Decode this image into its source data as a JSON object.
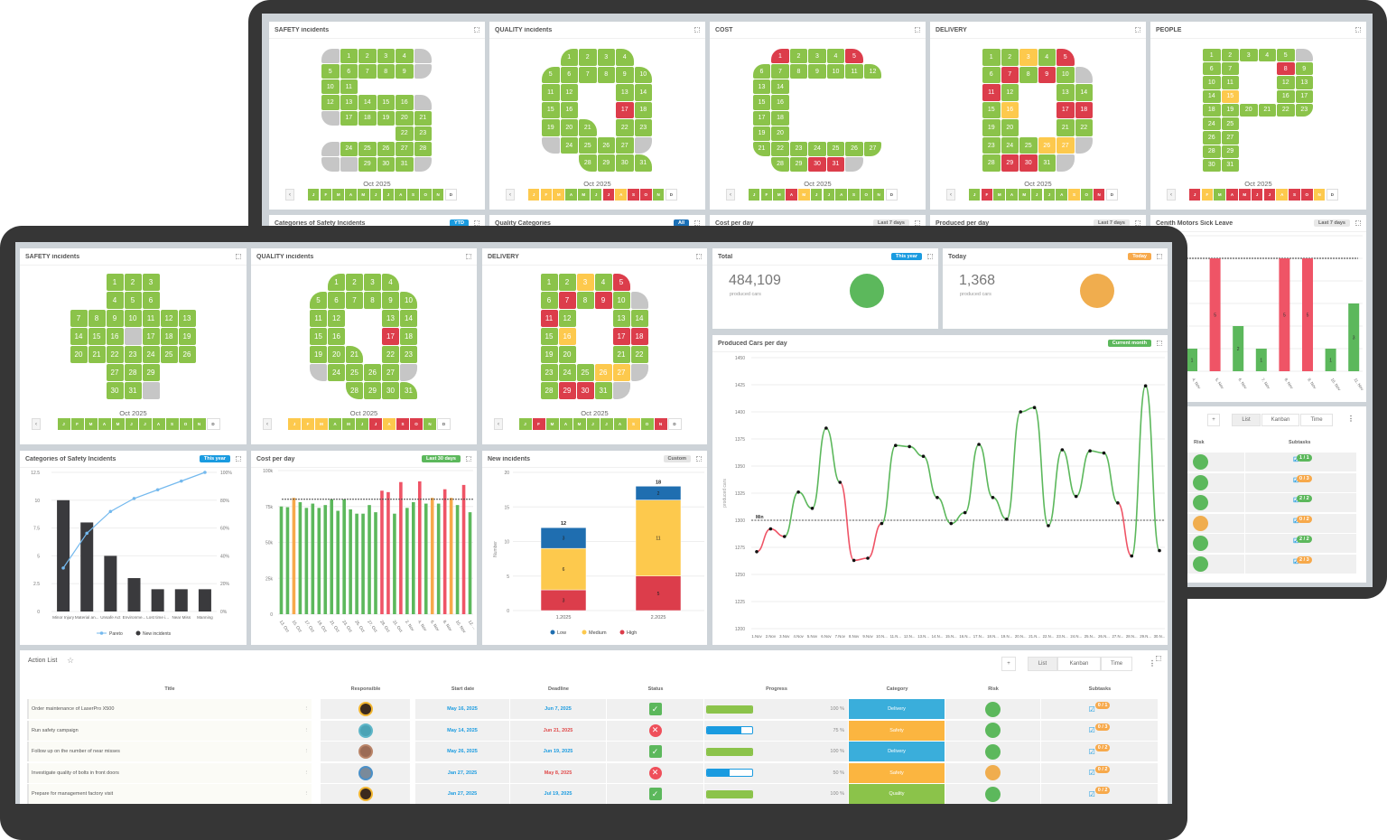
{
  "months": [
    "J",
    "F",
    "M",
    "A",
    "M",
    "J",
    "J",
    "A",
    "S",
    "O",
    "N",
    "D"
  ],
  "colors": {
    "green": "#8bc34a",
    "red": "#dc3d4b",
    "yellow": "#fdc94d",
    "gray": "#c6c6c6",
    "blue": "#1a9be0",
    "orange": "#f0ad4e"
  },
  "back": {
    "calendars": {
      "safety": {
        "title": "SAFETY incidents",
        "month_label": "Oct 2025",
        "days": "ggggggggggggggggggggggggggggggg",
        "months_status": "gggggggggggw"
      },
      "quality": {
        "title": "QUALITY incidents",
        "month_label": "Oct 2025",
        "days": "ggggggggggggggggrgggggggggggggg",
        "months_status": "yyygggryrrgw"
      },
      "cost": {
        "title": "COST",
        "month_label": "Oct 2025",
        "days": "rgggrggggggggggggggggggggggggrrg",
        "months_status": "gggryggggggw"
      },
      "delivery": {
        "title": "DELIVERY",
        "month_label": "Oct 2025",
        "days": "ggygrgrgrgrggggyrrgggggggyygrrg",
        "months_status": "grggggggygrw"
      },
      "people": {
        "title": "PEOPLE",
        "month_label": "Oct 2025",
        "days": "gggggggrggggggyggggggggggggggggg",
        "months_status": "rygrrrryrryw"
      }
    },
    "row2": [
      {
        "title": "Categories of Safety Incidents",
        "badge": "YTD",
        "badge_color": "#1a9be0"
      },
      {
        "title": "Quality Categories",
        "badge": "All",
        "badge_color": "#1a6fb5"
      },
      {
        "title": "Cost per day",
        "badge": "Last 7 days",
        "badge_color": "#e8e8e8"
      },
      {
        "title": "Produced per day",
        "badge": "Last 7 days",
        "badge_color": "#e8e8e8"
      },
      {
        "title": "Cenith Motors Sick Leave",
        "badge": "Last 7 days",
        "badge_color": "#e8e8e8"
      }
    ],
    "action_list": {
      "add": "+",
      "views": [
        "List",
        "Kanban",
        "Time"
      ],
      "headers": {
        "risk": "Risk",
        "subtasks": "Subtasks"
      },
      "rows": [
        {
          "risk": "green",
          "subtasks": "1 / 1",
          "sub_color": "green"
        },
        {
          "risk": "green",
          "subtasks": "0 / 3",
          "sub_color": "orange"
        },
        {
          "risk": "green",
          "subtasks": "2 / 2",
          "sub_color": "green"
        },
        {
          "risk": "orange",
          "subtasks": "0 / 2",
          "sub_color": "orange"
        },
        {
          "risk": "green",
          "subtasks": "2 / 2",
          "sub_color": "green"
        },
        {
          "risk": "green",
          "subtasks": "2 / 3",
          "sub_color": "orange"
        }
      ]
    }
  },
  "front": {
    "calendars": {
      "safety": {
        "title": "SAFETY incidents",
        "month_label": "Oct 2025",
        "days": "ggggggggggggggggggggggggggggggg",
        "months_status": "gggggggggggw"
      },
      "quality": {
        "title": "QUALITY incidents",
        "month_label": "Oct 2025",
        "days": "ggggggggggggggggrgggggggggggggg",
        "months_status": "yyygggryrrgw"
      },
      "delivery": {
        "title": "DELIVERY",
        "month_label": "Oct 2025",
        "days": "ggygrgrgrgrggggyrrgggggggyygrrg",
        "months_status": "grggggggygrw"
      }
    },
    "total": {
      "title": "Total",
      "badge": "This year",
      "value": "484,109",
      "unit": "produced cars",
      "indicator": "green"
    },
    "today": {
      "title": "Today",
      "badge": "Today",
      "value": "1,368",
      "unit": "produced cars",
      "indicator": "orange"
    },
    "panels": {
      "produced": {
        "title": "Produced Cars per day",
        "badge": "Current month"
      },
      "categories": {
        "title": "Categories of Safety Incidents",
        "badge": "This year"
      },
      "cost": {
        "title": "Cost per day",
        "badge": "Last 30 days"
      },
      "incidents": {
        "title": "New incidents",
        "badge": "Custom"
      }
    },
    "action_list": {
      "title": "Action List",
      "add": "+",
      "views": [
        "List",
        "Kanban",
        "Time"
      ],
      "headers": [
        "Title",
        "Responsible",
        "Start date",
        "Deadline",
        "Status",
        "Progress",
        "Category",
        "Risk",
        "Subtasks"
      ],
      "rows": [
        {
          "title": "Order maintenance of LaserPro X500",
          "start": "May 16, 2025",
          "deadline": "Jun 7, 2025",
          "overdue": false,
          "status": "done",
          "progress": 100,
          "progress_text": "100 %",
          "category": "Delivery",
          "risk": "green",
          "subtasks": "0 / 1"
        },
        {
          "title": "Run safety campaign",
          "start": "May 14, 2025",
          "deadline": "Jun 21, 2025",
          "overdue": true,
          "status": "failed",
          "progress": 75,
          "progress_text": "75 %",
          "category": "Safety",
          "risk": "green",
          "subtasks": "0 / 3"
        },
        {
          "title": "Follow up on the number of near misses",
          "start": "May 26, 2025",
          "deadline": "Jun 19, 2025",
          "overdue": false,
          "status": "done",
          "progress": 100,
          "progress_text": "100 %",
          "category": "Delivery",
          "risk": "green",
          "subtasks": "0 / 2"
        },
        {
          "title": "Investigate quality of bolts in front doors",
          "start": "Jan 27, 2025",
          "deadline": "May 8, 2025",
          "overdue": true,
          "status": "failed",
          "progress": 50,
          "progress_text": "50 %",
          "category": "Safety",
          "risk": "orange",
          "subtasks": "0 / 2"
        },
        {
          "title": "Prepare for management factory visit",
          "start": "Jan 27, 2025",
          "deadline": "Jul 19, 2025",
          "overdue": false,
          "status": "done",
          "progress": 100,
          "progress_text": "100 %",
          "category": "Quality",
          "risk": "green",
          "subtasks": "0 / 2"
        }
      ],
      "category_colors": {
        "Delivery": "#3aaedb",
        "Safety": "#fbb540",
        "Quality": "#8bc34a"
      }
    }
  },
  "chart_data": [
    {
      "type": "bar+line",
      "title": "Categories of Safety Incidents",
      "categories": [
        "Minor Injury",
        "Material an...",
        "Unsafe Act",
        "Environme...",
        "Lost time i...",
        "Near Miss",
        "Manning"
      ],
      "series": [
        {
          "name": "New incidents",
          "type": "bar",
          "values": [
            10,
            8,
            5,
            3,
            2,
            2,
            2
          ],
          "color": "#3a3a3d"
        },
        {
          "name": "Pareto",
          "type": "line",
          "values": [
            31.25,
            56.25,
            71.88,
            81.25,
            87.5,
            93.75,
            100
          ],
          "color": "#74b9ee"
        }
      ],
      "ylim": [
        0,
        12.5
      ],
      "y_ticks": [
        "0",
        "2.5",
        "5",
        "7.5",
        "10",
        "12.5"
      ],
      "y2lim": [
        0,
        100
      ],
      "y2_ticks": [
        "0%",
        "20%",
        "40%",
        "60%",
        "80%",
        "100%"
      ],
      "legend": "bottom",
      "grid": true
    },
    {
      "type": "bar",
      "title": "Cost per day",
      "x": [
        "13. Oct",
        "14. Oct",
        "15. Oct",
        "16. Oct",
        "17. Oct",
        "18. Oct",
        "19. Oct",
        "20. Oct",
        "21. Oct",
        "22. Oct",
        "23. Oct",
        "24. Oct",
        "25. Oct",
        "26. Oct",
        "27. Oct",
        "28. Oct",
        "29. Oct",
        "30. Oct",
        "31. Oct",
        "1. Nov",
        "2. Nov",
        "3. Nov",
        "4. Nov",
        "5. Nov",
        "6. Nov",
        "7. Nov",
        "8. Nov",
        "9. Nov",
        "10. Nov",
        "11. Nov",
        "12. ..."
      ],
      "values": [
        75,
        74.5,
        81,
        78,
        74,
        77,
        74,
        76,
        80,
        72,
        80,
        73,
        70,
        70,
        76,
        71,
        86,
        85,
        70,
        92,
        74,
        78,
        92.5,
        77,
        81,
        77,
        87,
        81,
        76,
        90,
        71
      ],
      "status": [
        "g",
        "g",
        "o",
        "g",
        "g",
        "g",
        "g",
        "g",
        "g",
        "g",
        "g",
        "g",
        "g",
        "g",
        "g",
        "g",
        "r",
        "r",
        "g",
        "r",
        "g",
        "g",
        "r",
        "g",
        "o",
        "g",
        "r",
        "o",
        "g",
        "r",
        "g"
      ],
      "target": 80,
      "ylim": [
        0,
        100
      ],
      "y_ticks": [
        "0",
        "25k",
        "50k",
        "75k",
        "100k"
      ],
      "grid": true
    },
    {
      "type": "stacked-bar",
      "title": "New incidents",
      "categories": [
        "1.2025",
        "2.2025"
      ],
      "series": [
        {
          "name": "High",
          "values": [
            3,
            5
          ],
          "color": "#dc3d4b"
        },
        {
          "name": "Medium",
          "values": [
            6,
            11
          ],
          "color": "#fdc94d"
        },
        {
          "name": "Low",
          "values": [
            3,
            2
          ],
          "color": "#1f6eb0"
        }
      ],
      "totals": [
        "12",
        "18"
      ],
      "ylabel": "Number",
      "ylim": [
        0,
        20
      ],
      "y_ticks": [
        "0",
        "5",
        "10",
        "15",
        "20"
      ],
      "legend": "bottom",
      "legend_order": [
        "Low",
        "Medium",
        "High"
      ],
      "grid": true
    },
    {
      "type": "line",
      "title": "Produced Cars per day",
      "x": [
        "1.Nov",
        "2.Nov",
        "3.Nov",
        "4.Nov",
        "5.Nov",
        "6.Nov",
        "7.Nov",
        "8.Nov",
        "9.Nov",
        "10.N...",
        "11.N...",
        "12.N...",
        "13.N...",
        "14.N...",
        "15.N...",
        "16.N...",
        "17.N...",
        "18.N...",
        "19.N...",
        "20.N...",
        "21.N...",
        "22.N...",
        "23.N...",
        "24.N...",
        "25.N...",
        "26.N...",
        "27.N...",
        "28.N...",
        "29.N...",
        "30.N..."
      ],
      "values": [
        1271,
        1292,
        1285,
        1326,
        1311,
        1385,
        1335,
        1263,
        1265,
        1297,
        1369,
        1368,
        1359,
        1321,
        1297,
        1307,
        1370,
        1321,
        1301,
        1400,
        1404,
        1295,
        1365,
        1322,
        1364,
        1362,
        1316,
        1267,
        1424,
        1272
      ],
      "min_line": 1300,
      "min_label": "Min",
      "ylabel": "produced cars",
      "ylim": [
        1200,
        1450
      ],
      "y_ticks": [
        "1200",
        "1225",
        "1250",
        "1275",
        "1300",
        "1325",
        "1350",
        "1375",
        "1400",
        "1425",
        "1450"
      ],
      "grid": true
    },
    {
      "type": "bar",
      "title": "Cenith Motors Sick Leave",
      "x": [
        "4. Nov",
        "5. Nov",
        "6. Nov",
        "7. Nov",
        "8. Nov",
        "9. Nov",
        "10. Nov",
        "11. Nov"
      ],
      "values": [
        1,
        5,
        2,
        1,
        5,
        5,
        1,
        3
      ],
      "labels": [
        "1",
        "5",
        "2",
        "1",
        "5",
        "5",
        "1",
        "3"
      ],
      "target": 5,
      "ylim": [
        0,
        6
      ]
    }
  ]
}
